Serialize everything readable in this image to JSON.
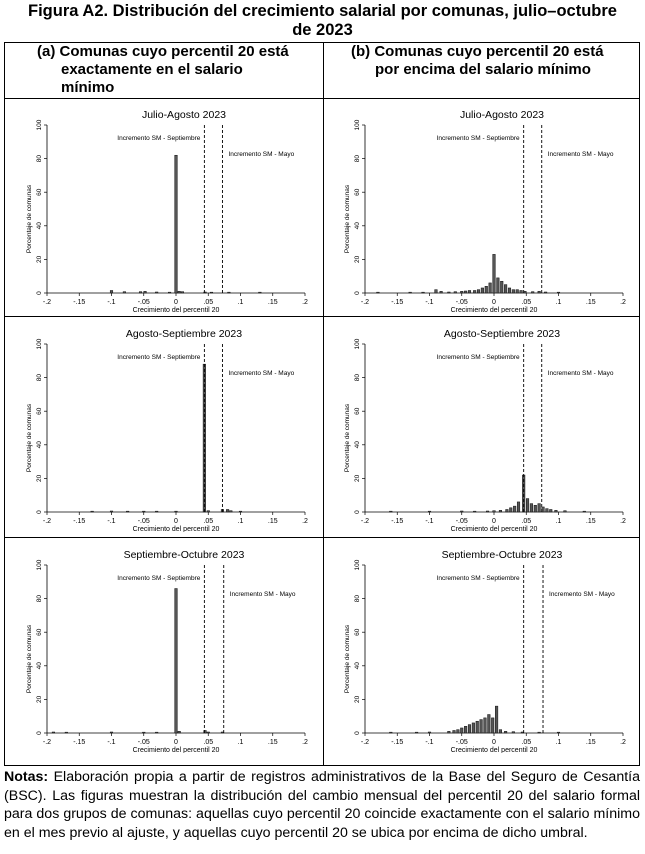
{
  "figure": {
    "title_line1": "Figura A2. Distribución del crecimiento salarial por comunas, julio–octubre",
    "title_line2": "de 2023"
  },
  "columns": {
    "a_line1": "(a) Comunas cuyo percentil 20 está",
    "a_line2": "exactamente en el salario",
    "a_line3": "mínimo",
    "b_line1": "(b) Comunas cuyo percentil 20 está",
    "b_line2": "por encima del salario mínimo"
  },
  "notes": {
    "label": "Notas:",
    "text": " Elaboración propia a partir de registros administrativos de la Base del Seguro de Cesantía (BSC). Las figuras muestran la distribución del cambio mensual del percentil 20 del salario formal para dos grupos de comunas: aquellas cuyo percentil 20 coincide exactamente con el salario mínimo en el mes previo al ajuste, y aquellas cuyo percentil 20 se ubica por encima de dicho umbral."
  },
  "chart_data": [
    {
      "id": "a1",
      "type": "bar",
      "title": "Julio-Agosto 2023",
      "xlabel": "Crecimiento del percentil 20",
      "ylabel": "Porcentaje de comunas",
      "xlim": [
        -0.2,
        0.2
      ],
      "ylim": [
        0,
        100
      ],
      "xticks": [
        "-.2",
        "-.15",
        "-.1",
        "-.05",
        "0",
        ".05",
        ".1",
        ".15",
        ".2"
      ],
      "yticks": [
        "0",
        "20",
        "40",
        "60",
        "80",
        "100"
      ],
      "vlines": [
        {
          "x": 0.044,
          "label": "Incremento SM - Septiembre"
        },
        {
          "x": 0.072,
          "label": "Incremento SM - Mayo"
        }
      ],
      "bin_width": 0.004,
      "bars": [
        [
          -0.1,
          1.5
        ],
        [
          -0.08,
          0.8
        ],
        [
          -0.055,
          0.8
        ],
        [
          -0.048,
          1
        ],
        [
          -0.03,
          0.6
        ],
        [
          -0.01,
          0.5
        ],
        [
          0,
          82
        ],
        [
          0.005,
          1
        ],
        [
          0.01,
          0.8
        ],
        [
          0.045,
          0.6
        ],
        [
          0.055,
          0.5
        ],
        [
          0.082,
          0.5
        ],
        [
          0.13,
          0.5
        ]
      ]
    },
    {
      "id": "b1",
      "type": "bar",
      "title": "Julio-Agosto 2023",
      "xlabel": "Crecimiento del percentil 20",
      "ylabel": "Porcentaje de comunas",
      "xlim": [
        -0.2,
        0.2
      ],
      "ylim": [
        0,
        100
      ],
      "xticks": [
        "-.2",
        "-.15",
        "-.1",
        "-.05",
        "0",
        ".05",
        ".1",
        ".15",
        ".2"
      ],
      "yticks": [
        "0",
        "20",
        "40",
        "60",
        "80",
        "100"
      ],
      "vlines": [
        {
          "x": 0.046,
          "label": "Incremento SM - Septiembre"
        },
        {
          "x": 0.074,
          "label": "Incremento SM - Mayo"
        }
      ],
      "bin_width": 0.004,
      "bars": [
        [
          -0.18,
          0.5
        ],
        [
          -0.13,
          0.5
        ],
        [
          -0.11,
          0.5
        ],
        [
          -0.09,
          2
        ],
        [
          -0.082,
          1
        ],
        [
          -0.07,
          0.6
        ],
        [
          -0.06,
          0.8
        ],
        [
          -0.05,
          1
        ],
        [
          -0.044,
          1.2
        ],
        [
          -0.038,
          1.5
        ],
        [
          -0.03,
          1.5
        ],
        [
          -0.024,
          2
        ],
        [
          -0.018,
          3
        ],
        [
          -0.012,
          4
        ],
        [
          -0.006,
          6
        ],
        [
          0,
          23
        ],
        [
          0.006,
          9
        ],
        [
          0.012,
          7
        ],
        [
          0.018,
          5
        ],
        [
          0.024,
          3
        ],
        [
          0.03,
          2
        ],
        [
          0.036,
          2
        ],
        [
          0.042,
          1.5
        ],
        [
          0.048,
          1
        ],
        [
          0.06,
          0.8
        ],
        [
          0.07,
          1
        ],
        [
          0.08,
          0.6
        ],
        [
          0.1,
          0.5
        ]
      ]
    },
    {
      "id": "a2",
      "type": "bar",
      "title": "Agosto-Septiembre 2023",
      "xlabel": "Crecimiento del percentil 20",
      "ylabel": "Porcentaje de comunas",
      "xlim": [
        -0.2,
        0.2
      ],
      "ylim": [
        0,
        100
      ],
      "xticks": [
        "-.2",
        "-.15",
        "-.1",
        "-.05",
        "0",
        ".05",
        ".1",
        ".15",
        ".2"
      ],
      "yticks": [
        "0",
        "20",
        "40",
        "60",
        "80",
        "100"
      ],
      "vlines": [
        {
          "x": 0.044,
          "label": "Incremento SM - Septiembre"
        },
        {
          "x": 0.072,
          "label": "Incremento SM - Mayo"
        }
      ],
      "bin_width": 0.004,
      "bars": [
        [
          -0.13,
          0.5
        ],
        [
          -0.1,
          0.6
        ],
        [
          -0.075,
          0.5
        ],
        [
          -0.05,
          0.5
        ],
        [
          -0.03,
          0.5
        ],
        [
          0,
          0.5
        ],
        [
          0.044,
          88
        ],
        [
          0.05,
          0.8
        ],
        [
          0.072,
          1.5
        ],
        [
          0.08,
          1.5
        ],
        [
          0.085,
          0.8
        ],
        [
          0.1,
          0.5
        ]
      ]
    },
    {
      "id": "b2",
      "type": "bar",
      "title": "Agosto-Septiembre 2023",
      "xlabel": "Crecimiento del percentil 20",
      "ylabel": "Porcentaje de comunas",
      "xlim": [
        -0.2,
        0.2
      ],
      "ylim": [
        0,
        100
      ],
      "xticks": [
        "-.2",
        "-.15",
        "-.1",
        "-.05",
        "0",
        ".05",
        ".1",
        ".15",
        ".2"
      ],
      "yticks": [
        "0",
        "20",
        "40",
        "60",
        "80",
        "100"
      ],
      "vlines": [
        {
          "x": 0.046,
          "label": "Incremento SM - Septiembre"
        },
        {
          "x": 0.074,
          "label": "Incremento SM - Mayo"
        }
      ],
      "bin_width": 0.004,
      "bars": [
        [
          -0.16,
          0.5
        ],
        [
          -0.1,
          0.5
        ],
        [
          -0.05,
          0.6
        ],
        [
          -0.03,
          0.5
        ],
        [
          -0.01,
          0.6
        ],
        [
          0,
          0.8
        ],
        [
          0.01,
          1
        ],
        [
          0.02,
          1.5
        ],
        [
          0.026,
          2.5
        ],
        [
          0.032,
          3.5
        ],
        [
          0.038,
          6
        ],
        [
          0.046,
          22
        ],
        [
          0.052,
          8
        ],
        [
          0.058,
          5
        ],
        [
          0.064,
          4
        ],
        [
          0.07,
          5
        ],
        [
          0.076,
          3
        ],
        [
          0.082,
          2
        ],
        [
          0.088,
          1.5
        ],
        [
          0.096,
          1
        ],
        [
          0.11,
          0.8
        ],
        [
          0.14,
          0.5
        ]
      ]
    },
    {
      "id": "a3",
      "type": "bar",
      "title": "Septiembre-Octubre 2023",
      "xlabel": "Crecimiento del percentil 20",
      "ylabel": "Porcentaje de comunas",
      "xlim": [
        -0.2,
        0.2
      ],
      "ylim": [
        0,
        100
      ],
      "xticks": [
        "-.2",
        "-.15",
        "-.1",
        "-.05",
        "0",
        ".05",
        ".1",
        ".15",
        ".2"
      ],
      "yticks": [
        "0",
        "20",
        "40",
        "60",
        "80",
        "100"
      ],
      "vlines": [
        {
          "x": 0.044,
          "label": "Incremento SM - Septiembre"
        },
        {
          "x": 0.074,
          "label": "Incremento SM - Mayo"
        }
      ],
      "bin_width": 0.004,
      "bars": [
        [
          -0.19,
          0.6
        ],
        [
          -0.17,
          0.5
        ],
        [
          -0.1,
          0.6
        ],
        [
          -0.05,
          0.5
        ],
        [
          -0.03,
          0.5
        ],
        [
          0,
          86
        ],
        [
          0.005,
          1
        ],
        [
          0.045,
          1.5
        ],
        [
          0.05,
          0.6
        ],
        [
          0.072,
          0.6
        ]
      ]
    },
    {
      "id": "b3",
      "type": "bar",
      "title": "Septiembre-Octubre 2023",
      "xlabel": "Crecimiento del percentil 20",
      "ylabel": "Porcentaje de comunas",
      "xlim": [
        -0.2,
        0.2
      ],
      "ylim": [
        0,
        100
      ],
      "xticks": [
        "-.2",
        "-.15",
        "-.1",
        "-.05",
        "0",
        ".05",
        ".1",
        ".15",
        ".2"
      ],
      "yticks": [
        "0",
        "20",
        "40",
        "60",
        "80",
        "100"
      ],
      "vlines": [
        {
          "x": 0.046,
          "label": "Incremento SM - Septiembre"
        },
        {
          "x": 0.076,
          "label": "Incremento SM - Mayo"
        }
      ],
      "bin_width": 0.004,
      "bars": [
        [
          -0.16,
          0.5
        ],
        [
          -0.12,
          0.5
        ],
        [
          -0.1,
          0.6
        ],
        [
          -0.07,
          1
        ],
        [
          -0.062,
          1.5
        ],
        [
          -0.056,
          2
        ],
        [
          -0.05,
          3
        ],
        [
          -0.044,
          4
        ],
        [
          -0.038,
          5
        ],
        [
          -0.032,
          6
        ],
        [
          -0.026,
          7
        ],
        [
          -0.02,
          8
        ],
        [
          -0.014,
          9
        ],
        [
          -0.008,
          11
        ],
        [
          -0.002,
          9
        ],
        [
          0.004,
          16
        ],
        [
          0.01,
          2
        ],
        [
          0.018,
          1
        ],
        [
          0.03,
          0.8
        ],
        [
          0.044,
          0.6
        ],
        [
          0.07,
          0.5
        ],
        [
          0.1,
          0.5
        ]
      ]
    }
  ]
}
